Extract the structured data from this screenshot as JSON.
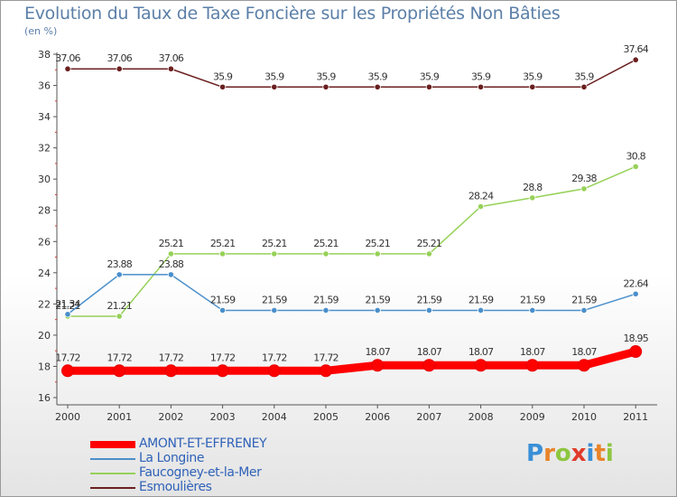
{
  "title": "Evolution du Taux de Taxe Foncière sur les Propriétés Non Bâties",
  "unit_label": "(en %)",
  "logo": {
    "letters": [
      "P",
      "r",
      "o",
      "x",
      "i",
      "t",
      "i"
    ],
    "colors": [
      "#3a8fd6",
      "#e8842a",
      "#8dc63f",
      "#e03b2a",
      "#3a8fd6",
      "#e8842a",
      "#8dc63f"
    ]
  },
  "chart_data": {
    "type": "line",
    "x": [
      "2000",
      "2001",
      "2002",
      "2003",
      "2004",
      "2005",
      "2006",
      "2007",
      "2008",
      "2009",
      "2010",
      "2011"
    ],
    "ylim": [
      16,
      38
    ],
    "yticks": [
      "16",
      "18",
      "20",
      "22",
      "24",
      "26",
      "28",
      "30",
      "32",
      "34",
      "36",
      "38"
    ],
    "grid": false,
    "legend_position": "bottom",
    "series": [
      {
        "name": "AMONT-ET-EFFRENEY",
        "color": "#ff0000",
        "values": [
          17.72,
          17.72,
          17.72,
          17.72,
          17.72,
          17.72,
          18.07,
          18.07,
          18.07,
          18.07,
          18.07,
          18.95
        ],
        "labels": [
          "17.72",
          "17.72",
          "17.72",
          "17.72",
          "17.72",
          "17.72",
          "18.07",
          "18.07",
          "18.07",
          "18.07",
          "18.07",
          "18.95"
        ]
      },
      {
        "name": "La Longine",
        "color": "#4a8fcb",
        "values": [
          21.34,
          23.88,
          23.88,
          21.59,
          21.59,
          21.59,
          21.59,
          21.59,
          21.59,
          21.59,
          21.59,
          22.64
        ],
        "labels": [
          "21.34",
          "23.88",
          "23.88",
          "21.59",
          "21.59",
          "21.59",
          "21.59",
          "21.59",
          "21.59",
          "21.59",
          "21.59",
          "22.64"
        ]
      },
      {
        "name": "Faucogney-et-la-Mer",
        "color": "#96d158",
        "values": [
          21.21,
          21.21,
          25.21,
          25.21,
          25.21,
          25.21,
          25.21,
          25.21,
          28.24,
          28.8,
          29.38,
          30.8
        ],
        "labels": [
          "21.21",
          "21.21",
          "25.21",
          "25.21",
          "25.21",
          "25.21",
          "25.21",
          "25.21",
          "28.24",
          "28.8",
          "29.38",
          "30.8"
        ]
      },
      {
        "name": "Esmoulières",
        "color": "#6b1f1f",
        "values": [
          37.06,
          37.06,
          37.06,
          35.9,
          35.9,
          35.9,
          35.9,
          35.9,
          35.9,
          35.9,
          35.9,
          37.64
        ],
        "labels": [
          "37.06",
          "37.06",
          "37.06",
          "35.9",
          "35.9",
          "35.9",
          "35.9",
          "35.9",
          "35.9",
          "35.9",
          "35.9",
          "37.64"
        ]
      }
    ]
  }
}
